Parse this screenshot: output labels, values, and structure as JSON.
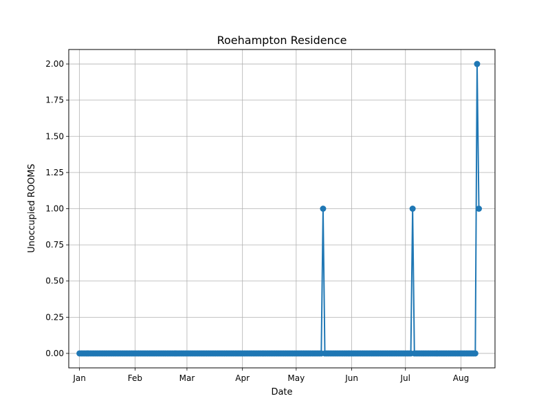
{
  "chart_data": {
    "type": "line",
    "title": "Roehampton Residence",
    "xlabel": "Date",
    "ylabel": "Unoccupied ROOMS",
    "x_range": [
      "2023-12-26",
      "2024-08-20"
    ],
    "ylim": [
      -0.1,
      2.1
    ],
    "grid": true,
    "legend": "none",
    "line_color": "#1f77b4",
    "x_ticks": [
      {
        "date": "2024-01-01",
        "label": "Jan"
      },
      {
        "date": "2024-02-01",
        "label": "Feb"
      },
      {
        "date": "2024-03-01",
        "label": "Mar"
      },
      {
        "date": "2024-04-01",
        "label": "Apr"
      },
      {
        "date": "2024-05-01",
        "label": "May"
      },
      {
        "date": "2024-06-01",
        "label": "Jun"
      },
      {
        "date": "2024-07-01",
        "label": "Jul"
      },
      {
        "date": "2024-08-01",
        "label": "Aug"
      }
    ],
    "y_ticks": [
      {
        "value": 0.0,
        "label": "0.00"
      },
      {
        "value": 0.25,
        "label": "0.25"
      },
      {
        "value": 0.5,
        "label": "0.50"
      },
      {
        "value": 0.75,
        "label": "0.75"
      },
      {
        "value": 1.0,
        "label": "1.00"
      },
      {
        "value": 1.25,
        "label": "1.25"
      },
      {
        "value": 1.5,
        "label": "1.50"
      },
      {
        "value": 1.75,
        "label": "1.75"
      },
      {
        "value": 2.0,
        "label": "2.00"
      }
    ],
    "series": [
      {
        "x_start": "2024-01-01",
        "x_end": "2024-08-11",
        "default_value": 0,
        "nonzero": [
          {
            "date": "2024-05-16",
            "value": 1
          },
          {
            "date": "2024-07-05",
            "value": 1
          },
          {
            "date": "2024-08-10",
            "value": 2
          },
          {
            "date": "2024-08-11",
            "value": 1
          }
        ]
      }
    ]
  }
}
